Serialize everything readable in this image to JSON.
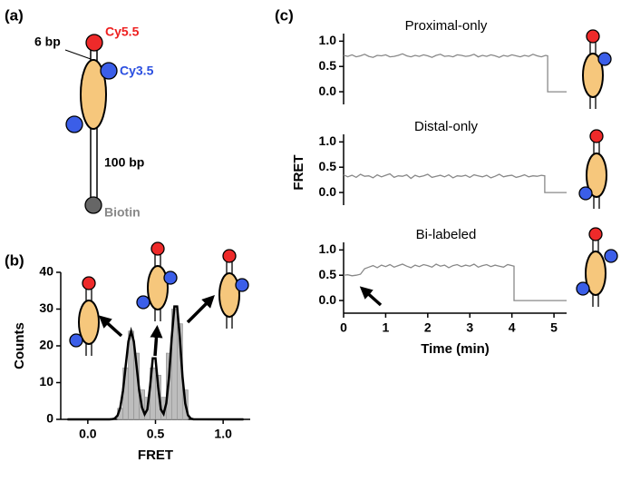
{
  "panel_labels": [
    "(a)",
    "(b)",
    "(c)"
  ],
  "diagram": {
    "labels": {
      "linker": "6 bp",
      "acceptor": "Cy5.5",
      "donor": "Cy3.5",
      "duplex": "100 bp",
      "anchor": "Biotin"
    }
  },
  "chart_data": [
    {
      "type": "histogram",
      "xlabel": "FRET",
      "ylabel": "Counts",
      "bins": [
        0.22,
        0.26,
        0.3,
        0.34,
        0.38,
        0.42,
        0.46,
        0.5,
        0.54,
        0.58,
        0.62,
        0.66,
        0.7,
        0.74
      ],
      "values": [
        3,
        14,
        24,
        18,
        8,
        6,
        14,
        12,
        6,
        18,
        30,
        26,
        8
      ],
      "color": "#bdbdbd",
      "fit": {
        "color": "#000000",
        "x": [
          -0.15,
          0.16,
          0.18,
          0.2,
          0.22,
          0.24,
          0.26,
          0.28,
          0.3,
          0.32,
          0.34,
          0.36,
          0.38,
          0.4,
          0.42,
          0.44,
          0.46,
          0.48,
          0.5,
          0.52,
          0.54,
          0.56,
          0.58,
          0.6,
          0.62,
          0.64,
          0.66,
          0.68,
          0.7,
          0.72,
          0.74,
          0.76,
          0.78,
          1.15
        ],
        "values": [
          0,
          0.01,
          0.05,
          0.27,
          1.05,
          3.25,
          7.8,
          14.6,
          21.2,
          24,
          21.2,
          14.6,
          7.8,
          3.3,
          1.4,
          2.7,
          8.9,
          16.6,
          16.6,
          8.8,
          2.7,
          1.5,
          4.4,
          11.5,
          22.2,
          30.7,
          30.7,
          22.2,
          11.5,
          4.3,
          1.17,
          0.23,
          0.03,
          0
        ]
      },
      "xlim": [
        -0.2,
        1.2
      ],
      "ylim": [
        0,
        40
      ],
      "xticks": [
        {
          "value": 0,
          "label": "0.0"
        },
        {
          "value": 0.5,
          "label": "0.5"
        },
        {
          "value": 1,
          "label": "1.0"
        }
      ],
      "yticks": [
        0,
        10,
        20,
        30,
        40
      ]
    },
    {
      "type": "line",
      "title": "Proximal-only",
      "color": "#888888",
      "xlim": [
        0,
        5.3
      ],
      "ylim": [
        -0.25,
        1.15
      ],
      "yticks": [
        {
          "value": 0,
          "label": "0.0"
        },
        {
          "value": 0.5,
          "label": "0.5"
        },
        {
          "value": 1,
          "label": "1.0"
        }
      ],
      "x": [
        0,
        0.1,
        0.2,
        0.3,
        0.4,
        0.5,
        0.6,
        0.7,
        0.8,
        0.9,
        1,
        1.1,
        1.2,
        1.3,
        1.4,
        1.5,
        1.6,
        1.7,
        1.8,
        1.9,
        2,
        2.1,
        2.2,
        2.3,
        2.4,
        2.5,
        2.6,
        2.7,
        2.8,
        2.9,
        3,
        3.1,
        3.2,
        3.3,
        3.4,
        3.5,
        3.6,
        3.7,
        3.8,
        3.9,
        4,
        4.1,
        4.2,
        4.3,
        4.4,
        4.5,
        4.6,
        4.7,
        4.8,
        4.85,
        4.85,
        5.3
      ],
      "values": [
        0.72,
        0.7,
        0.73,
        0.69,
        0.71,
        0.74,
        0.7,
        0.68,
        0.72,
        0.71,
        0.73,
        0.69,
        0.7,
        0.72,
        0.75,
        0.71,
        0.69,
        0.72,
        0.7,
        0.73,
        0.71,
        0.68,
        0.72,
        0.74,
        0.7,
        0.71,
        0.69,
        0.73,
        0.72,
        0.7,
        0.71,
        0.74,
        0.69,
        0.72,
        0.7,
        0.73,
        0.71,
        0.68,
        0.72,
        0.7,
        0.73,
        0.71,
        0.69,
        0.72,
        0.7,
        0.74,
        0.71,
        0.69,
        0.72,
        0.71,
        0,
        0
      ]
    },
    {
      "type": "line",
      "title": "Distal-only",
      "ylabel": "FRET",
      "color": "#888888",
      "xlim": [
        0,
        5.3
      ],
      "ylim": [
        -0.25,
        1.15
      ],
      "yticks": [
        {
          "value": 0,
          "label": "0.0"
        },
        {
          "value": 0.5,
          "label": "0.5"
        },
        {
          "value": 1,
          "label": "1.0"
        }
      ],
      "x": [
        0,
        0.1,
        0.2,
        0.3,
        0.4,
        0.5,
        0.6,
        0.7,
        0.8,
        0.9,
        1,
        1.1,
        1.2,
        1.3,
        1.4,
        1.5,
        1.6,
        1.7,
        1.8,
        1.9,
        2,
        2.1,
        2.2,
        2.3,
        2.4,
        2.5,
        2.6,
        2.7,
        2.8,
        2.9,
        3,
        3.1,
        3.2,
        3.3,
        3.4,
        3.5,
        3.6,
        3.7,
        3.8,
        3.9,
        4,
        4.1,
        4.2,
        4.3,
        4.4,
        4.5,
        4.6,
        4.7,
        4.78,
        4.78,
        5.3
      ],
      "values": [
        0.35,
        0.31,
        0.34,
        0.3,
        0.36,
        0.32,
        0.33,
        0.29,
        0.35,
        0.31,
        0.34,
        0.37,
        0.3,
        0.33,
        0.32,
        0.35,
        0.28,
        0.34,
        0.31,
        0.33,
        0.36,
        0.3,
        0.32,
        0.34,
        0.31,
        0.35,
        0.29,
        0.33,
        0.32,
        0.34,
        0.3,
        0.35,
        0.33,
        0.31,
        0.34,
        0.29,
        0.32,
        0.36,
        0.31,
        0.33,
        0.34,
        0.3,
        0.32,
        0.35,
        0.31,
        0.33,
        0.32,
        0.34,
        0.33,
        0,
        0
      ]
    },
    {
      "type": "line",
      "title": "Bi-labeled",
      "xlabel": "Time (min)",
      "color": "#888888",
      "xlim": [
        0,
        5.3
      ],
      "ylim": [
        -0.25,
        1.15
      ],
      "xticks": [
        0,
        1,
        2,
        3,
        4,
        5
      ],
      "yticks": [
        {
          "value": 0,
          "label": "0.0"
        },
        {
          "value": 0.5,
          "label": "0.5"
        },
        {
          "value": 1,
          "label": "1.0"
        }
      ],
      "x": [
        0,
        0.1,
        0.2,
        0.3,
        0.4,
        0.5,
        0.6,
        0.7,
        0.8,
        0.9,
        1,
        1.1,
        1.2,
        1.3,
        1.4,
        1.5,
        1.6,
        1.7,
        1.8,
        1.9,
        2,
        2.1,
        2.2,
        2.3,
        2.4,
        2.5,
        2.6,
        2.7,
        2.8,
        2.9,
        3,
        3.1,
        3.2,
        3.3,
        3.4,
        3.5,
        3.6,
        3.7,
        3.8,
        3.9,
        4,
        4.05,
        4.05,
        5.3
      ],
      "values": [
        0.5,
        0.51,
        0.49,
        0.5,
        0.52,
        0.63,
        0.66,
        0.69,
        0.65,
        0.7,
        0.67,
        0.71,
        0.66,
        0.69,
        0.72,
        0.68,
        0.65,
        0.7,
        0.67,
        0.71,
        0.69,
        0.66,
        0.72,
        0.68,
        0.7,
        0.65,
        0.69,
        0.71,
        0.67,
        0.7,
        0.68,
        0.72,
        0.66,
        0.69,
        0.71,
        0.67,
        0.7,
        0.68,
        0.66,
        0.71,
        0.69,
        0.68,
        0,
        0
      ]
    }
  ]
}
